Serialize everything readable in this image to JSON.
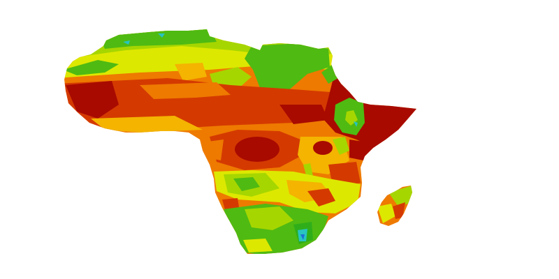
{
  "map": {
    "subject": "africa-continent-heatmap",
    "background": "#ffffff",
    "palette": {
      "dark_red": "#a80a00",
      "red": "#d43a00",
      "orange": "#ee7a00",
      "yellow_orange": "#f4b400",
      "yellow": "#dde800",
      "yellow_green": "#a6d600",
      "green": "#4fba12",
      "light_green": "#2fae1a",
      "cyan": "#27c4c0",
      "blue": "#1c6fd6"
    },
    "regions": [
      {
        "name": "mainland",
        "fill": "#4fba12"
      },
      {
        "name": "madagascar",
        "fill": "#ee7a00"
      }
    ]
  }
}
